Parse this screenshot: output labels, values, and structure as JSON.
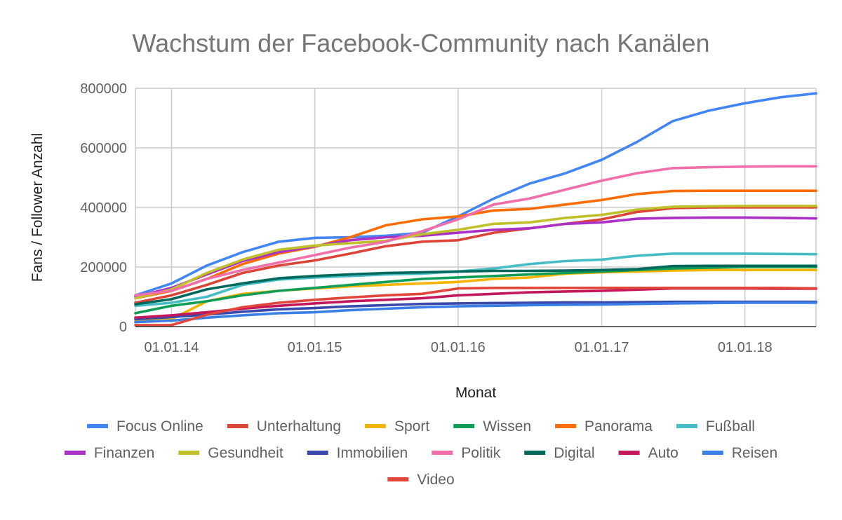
{
  "chart_data": {
    "type": "line",
    "title": "Wachstum der Facebook-Community nach Kanälen",
    "xlabel": "Monat",
    "ylabel": "Fans / Follower Anzahl",
    "ylim": [
      0,
      800000
    ],
    "yticks": [
      0,
      200000,
      400000,
      600000,
      800000
    ],
    "xlim": [
      "2013-10-01",
      "2018-07-01"
    ],
    "xticks": [
      "01.01.14",
      "01.01.15",
      "01.01.16",
      "01.01.17",
      "01.01.18"
    ],
    "grid": true,
    "legend_position": "bottom",
    "x": [
      "2013-10-01",
      "2014-01-01",
      "2014-04-01",
      "2014-07-01",
      "2014-10-01",
      "2015-01-01",
      "2015-04-01",
      "2015-07-01",
      "2015-10-01",
      "2016-01-01",
      "2016-04-01",
      "2016-07-01",
      "2016-10-01",
      "2017-01-01",
      "2017-04-01",
      "2017-07-01",
      "2017-10-01",
      "2018-01-01",
      "2018-04-01",
      "2018-07-01"
    ],
    "series": [
      {
        "name": "Focus Online",
        "color": "#4285F4",
        "values": [
          105000,
          145000,
          205000,
          250000,
          285000,
          298000,
          300000,
          305000,
          315000,
          370000,
          430000,
          480000,
          515000,
          560000,
          620000,
          690000,
          725000,
          750000,
          770000,
          783000
        ]
      },
      {
        "name": "Unterhaltung",
        "color": "#DB4437",
        "values": [
          80000,
          105000,
          140000,
          180000,
          205000,
          222000,
          245000,
          270000,
          285000,
          290000,
          315000,
          330000,
          345000,
          360000,
          385000,
          398000,
          400000,
          400000,
          400000,
          400000
        ]
      },
      {
        "name": "Sport",
        "color": "#F4B400",
        "values": [
          20000,
          25000,
          85000,
          110000,
          120000,
          128000,
          135000,
          140000,
          145000,
          150000,
          160000,
          165000,
          178000,
          182000,
          185000,
          188000,
          190000,
          190000,
          190000,
          190000
        ]
      },
      {
        "name": "Wissen",
        "color": "#0F9D58",
        "values": [
          45000,
          70000,
          85000,
          105000,
          120000,
          130000,
          140000,
          150000,
          160000,
          165000,
          170000,
          175000,
          180000,
          185000,
          190000,
          195000,
          198000,
          200000,
          200000,
          200000
        ]
      },
      {
        "name": "Panorama",
        "color": "#FF6D00",
        "values": [
          95000,
          120000,
          160000,
          210000,
          245000,
          268000,
          300000,
          340000,
          360000,
          370000,
          390000,
          395000,
          410000,
          425000,
          445000,
          455000,
          456000,
          456000,
          456000,
          456000
        ]
      },
      {
        "name": "Fußball",
        "color": "#46BDC6",
        "values": [
          70000,
          80000,
          100000,
          140000,
          158000,
          165000,
          170000,
          175000,
          178000,
          185000,
          195000,
          210000,
          220000,
          225000,
          238000,
          245000,
          245000,
          245000,
          244000,
          243000
        ]
      },
      {
        "name": "Finanzen",
        "color": "#AB30C4",
        "values": [
          100000,
          130000,
          175000,
          220000,
          250000,
          270000,
          290000,
          300000,
          305000,
          315000,
          325000,
          330000,
          345000,
          350000,
          362000,
          365000,
          366000,
          366000,
          365000,
          363000
        ]
      },
      {
        "name": "Gesundheit",
        "color": "#C0C02A",
        "values": [
          95000,
          125000,
          180000,
          225000,
          258000,
          272000,
          280000,
          288000,
          310000,
          325000,
          345000,
          350000,
          365000,
          375000,
          393000,
          402000,
          404000,
          405000,
          405000,
          405000
        ]
      },
      {
        "name": "Immobilien",
        "color": "#3949AB",
        "values": [
          25000,
          32000,
          40000,
          50000,
          58000,
          62000,
          68000,
          72000,
          76000,
          78000,
          79000,
          80000,
          81000,
          81000,
          82000,
          83000,
          83000,
          83000,
          83000,
          83000
        ]
      },
      {
        "name": "Politik",
        "color": "#F06EAA",
        "values": [
          105000,
          120000,
          160000,
          190000,
          215000,
          240000,
          265000,
          285000,
          320000,
          360000,
          410000,
          430000,
          460000,
          490000,
          515000,
          532000,
          535000,
          537000,
          538000,
          538000
        ]
      },
      {
        "name": "Digital",
        "color": "#00695C",
        "values": [
          75000,
          92000,
          125000,
          145000,
          162000,
          170000,
          175000,
          180000,
          182000,
          185000,
          187000,
          187000,
          188000,
          190000,
          193000,
          203000,
          204000,
          204000,
          204000,
          204000
        ]
      },
      {
        "name": "Auto",
        "color": "#C2185B",
        "values": [
          30000,
          38000,
          48000,
          60000,
          70000,
          78000,
          85000,
          90000,
          95000,
          105000,
          110000,
          115000,
          118000,
          120000,
          124000,
          128000,
          128000,
          128000,
          127000,
          127000
        ]
      },
      {
        "name": "Reisen",
        "color": "#3A7FE6",
        "values": [
          15000,
          20000,
          30000,
          38000,
          45000,
          48000,
          55000,
          60000,
          65000,
          68000,
          70000,
          72000,
          73000,
          74000,
          76000,
          78000,
          79000,
          80000,
          80000,
          80000
        ]
      },
      {
        "name": "Video",
        "color": "#E0463A",
        "values": [
          5000,
          5000,
          40000,
          65000,
          80000,
          90000,
          98000,
          105000,
          110000,
          128000,
          130000,
          130000,
          130000,
          130000,
          130000,
          130000,
          130000,
          130000,
          130000,
          128000
        ]
      }
    ]
  }
}
